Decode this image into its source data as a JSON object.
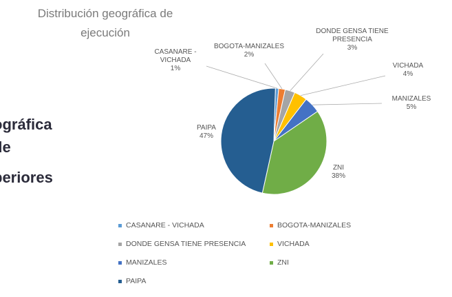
{
  "chart_data": {
    "type": "pie",
    "title": "Distribución geográfica de ejecución",
    "categories": [
      "CASANARE - VICHADA",
      "BOGOTA-MANIZALES",
      "DONDE GENSA TIENE PRESENCIA",
      "VICHADA",
      "MANIZALES",
      "ZNI",
      "PAIPA"
    ],
    "values": [
      1,
      2,
      3,
      4,
      5,
      38,
      47
    ],
    "value_labels": [
      "1%",
      "2%",
      "3%",
      "4%",
      "5%",
      "38%",
      "47%"
    ],
    "colors": [
      "#5b9bd5",
      "#ed7d31",
      "#a5a5a5",
      "#ffc000",
      "#4472c4",
      "#70ad47",
      "#255e91"
    ],
    "legend": "bottom"
  },
  "side_text": [
    "ográfica",
    "de",
    "periores"
  ]
}
